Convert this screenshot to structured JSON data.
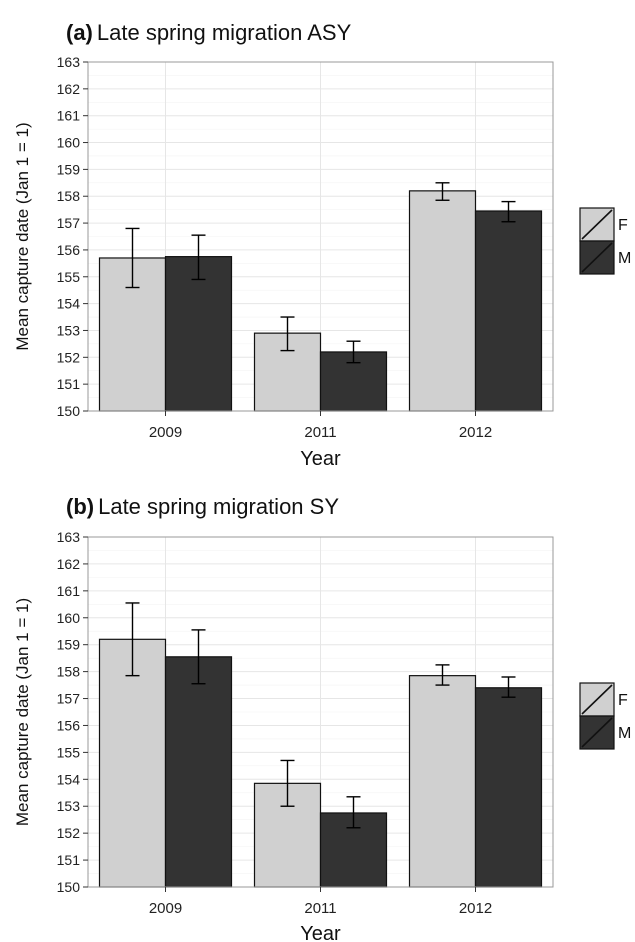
{
  "chart_data": [
    {
      "type": "bar",
      "panel_label": "(a)",
      "title": "Late spring migration ASY",
      "xlabel": "Year",
      "ylabel": "Mean capture date (Jan 1 = 1)",
      "categories": [
        "2009",
        "2011",
        "2012"
      ],
      "ylim": [
        150,
        163
      ],
      "yticks": [
        150,
        151,
        152,
        153,
        154,
        155,
        156,
        157,
        158,
        159,
        160,
        161,
        162,
        163
      ],
      "grid": true,
      "legend_position": "right",
      "series": [
        {
          "name": "F",
          "color": "#d0d0d0",
          "values": [
            155.7,
            152.9,
            158.2
          ],
          "error_low": [
            154.6,
            152.25,
            157.85
          ],
          "error_high": [
            156.8,
            153.5,
            158.5
          ]
        },
        {
          "name": "M",
          "color": "#333333",
          "values": [
            155.75,
            152.2,
            157.45
          ],
          "error_low": [
            154.9,
            151.8,
            157.05
          ],
          "error_high": [
            156.55,
            152.6,
            157.8
          ]
        }
      ]
    },
    {
      "type": "bar",
      "panel_label": "(b)",
      "title": "Late spring migration SY",
      "xlabel": "Year",
      "ylabel": "Mean capture date (Jan 1 = 1)",
      "categories": [
        "2009",
        "2011",
        "2012"
      ],
      "ylim": [
        150,
        163
      ],
      "yticks": [
        150,
        151,
        152,
        153,
        154,
        155,
        156,
        157,
        158,
        159,
        160,
        161,
        162,
        163
      ],
      "grid": true,
      "legend_position": "right",
      "series": [
        {
          "name": "F",
          "color": "#d0d0d0",
          "values": [
            159.2,
            153.85,
            157.85
          ],
          "error_low": [
            157.85,
            153.0,
            157.5
          ],
          "error_high": [
            160.55,
            154.7,
            158.25
          ]
        },
        {
          "name": "M",
          "color": "#333333",
          "values": [
            158.55,
            152.75,
            157.4
          ],
          "error_low": [
            157.55,
            152.2,
            157.05
          ],
          "error_high": [
            159.55,
            153.35,
            157.8
          ]
        }
      ]
    }
  ]
}
